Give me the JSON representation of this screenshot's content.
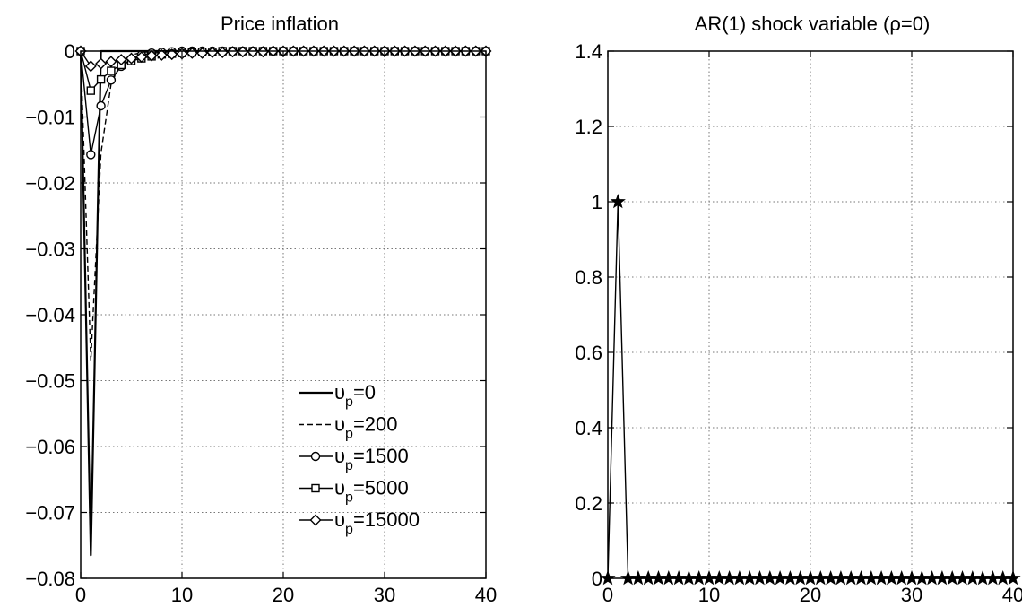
{
  "chart_data": [
    {
      "type": "line",
      "title": "Price inflation",
      "xlabel": "",
      "ylabel": "",
      "xlim": [
        0,
        40
      ],
      "ylim": [
        -0.08,
        0
      ],
      "xticks": [
        0,
        10,
        20,
        30,
        40
      ],
      "yticks": [
        0,
        -0.01,
        -0.02,
        -0.03,
        -0.04,
        -0.05,
        -0.06,
        -0.07,
        -0.08
      ],
      "xtick_labels": [
        "0",
        "10",
        "20",
        "30",
        "40"
      ],
      "ytick_labels": [
        "0",
        "−0.01",
        "−0.02",
        "−0.03",
        "−0.04",
        "−0.05",
        "−0.06",
        "−0.07",
        "−0.08"
      ],
      "grid": true,
      "legend_position": "bottom-right",
      "x": [
        0,
        1,
        2,
        3,
        4,
        5,
        6,
        7,
        8,
        9,
        10,
        11,
        12,
        13,
        14,
        15,
        16,
        17,
        18,
        19,
        20,
        21,
        22,
        23,
        24,
        25,
        26,
        27,
        28,
        29,
        30,
        31,
        32,
        33,
        34,
        35,
        36,
        37,
        38,
        39,
        40
      ],
      "series": [
        {
          "name_base": "υ",
          "name_sub": "p",
          "name_suffix": "=0",
          "style": "solid",
          "marker": "none",
          "values": [
            0,
            -0.0765,
            0,
            0,
            0,
            0,
            0,
            0,
            0,
            0,
            0,
            0,
            0,
            0,
            0,
            0,
            0,
            0,
            0,
            0,
            0,
            0,
            0,
            0,
            0,
            0,
            0,
            0,
            0,
            0,
            0,
            0,
            0,
            0,
            0,
            0,
            0,
            0,
            0,
            0,
            0
          ]
        },
        {
          "name_base": "υ",
          "name_sub": "p",
          "name_suffix": "=200",
          "style": "dashed",
          "marker": "none",
          "values": [
            0,
            -0.047,
            -0.0155,
            -0.005,
            -0.0017,
            -0.0006,
            -0.0002,
            -0.0001,
            0,
            0,
            0,
            0,
            0,
            0,
            0,
            0,
            0,
            0,
            0,
            0,
            0,
            0,
            0,
            0,
            0,
            0,
            0,
            0,
            0,
            0,
            0,
            0,
            0,
            0,
            0,
            0,
            0,
            0,
            0,
            0,
            0
          ]
        },
        {
          "name_base": "υ",
          "name_sub": "p",
          "name_suffix": "=1500",
          "style": "solid",
          "marker": "circle",
          "values": [
            0,
            -0.0157,
            -0.0083,
            -0.0044,
            -0.0023,
            -0.0012,
            -0.0006,
            -0.0003,
            -0.0002,
            -0.0001,
            0,
            0,
            0,
            0,
            0,
            0,
            0,
            0,
            0,
            0,
            0,
            0,
            0,
            0,
            0,
            0,
            0,
            0,
            0,
            0,
            0,
            0,
            0,
            0,
            0,
            0,
            0,
            0,
            0,
            0,
            0
          ]
        },
        {
          "name_base": "υ",
          "name_sub": "p",
          "name_suffix": "=5000",
          "style": "solid",
          "marker": "square",
          "values": [
            0,
            -0.006,
            -0.0043,
            -0.003,
            -0.0021,
            -0.0015,
            -0.0011,
            -0.0008,
            -0.0005,
            -0.0004,
            -0.0003,
            -0.0002,
            -0.0001,
            -0.0001,
            0,
            0,
            0,
            0,
            0,
            0,
            0,
            0,
            0,
            0,
            0,
            0,
            0,
            0,
            0,
            0,
            0,
            0,
            0,
            0,
            0,
            0,
            0,
            0,
            0,
            0,
            0
          ]
        },
        {
          "name_base": "υ",
          "name_sub": "p",
          "name_suffix": "=15000",
          "style": "solid",
          "marker": "diamond",
          "values": [
            0,
            -0.0023,
            -0.0019,
            -0.0016,
            -0.0013,
            -0.0011,
            -0.0009,
            -0.0007,
            -0.0006,
            -0.0005,
            -0.0004,
            -0.0003,
            -0.0003,
            -0.0002,
            -0.0002,
            -0.0001,
            -0.0001,
            -0.0001,
            -0.0001,
            0,
            0,
            0,
            0,
            0,
            0,
            0,
            0,
            0,
            0,
            0,
            0,
            0,
            0,
            0,
            0,
            0,
            0,
            0,
            0,
            0,
            0
          ]
        }
      ]
    },
    {
      "type": "line",
      "title": "AR(1) shock variable (ρ=0)",
      "xlabel": "",
      "ylabel": "",
      "xlim": [
        0,
        40
      ],
      "ylim": [
        0,
        1.4
      ],
      "xticks": [
        0,
        10,
        20,
        30,
        40
      ],
      "yticks": [
        0,
        0.2,
        0.4,
        0.6,
        0.8,
        1,
        1.2,
        1.4
      ],
      "xtick_labels": [
        "0",
        "10",
        "20",
        "30",
        "40"
      ],
      "ytick_labels": [
        "0",
        "0.2",
        "0.4",
        "0.6",
        "0.8",
        "1",
        "1.2",
        "1.4"
      ],
      "grid": true,
      "x": [
        0,
        1,
        2,
        3,
        4,
        5,
        6,
        7,
        8,
        9,
        10,
        11,
        12,
        13,
        14,
        15,
        16,
        17,
        18,
        19,
        20,
        21,
        22,
        23,
        24,
        25,
        26,
        27,
        28,
        29,
        30,
        31,
        32,
        33,
        34,
        35,
        36,
        37,
        38,
        39,
        40
      ],
      "series": [
        {
          "style": "solid",
          "marker": "star",
          "values": [
            0,
            1,
            0,
            0,
            0,
            0,
            0,
            0,
            0,
            0,
            0,
            0,
            0,
            0,
            0,
            0,
            0,
            0,
            0,
            0,
            0,
            0,
            0,
            0,
            0,
            0,
            0,
            0,
            0,
            0,
            0,
            0,
            0,
            0,
            0,
            0,
            0,
            0,
            0,
            0,
            0
          ]
        }
      ]
    }
  ]
}
